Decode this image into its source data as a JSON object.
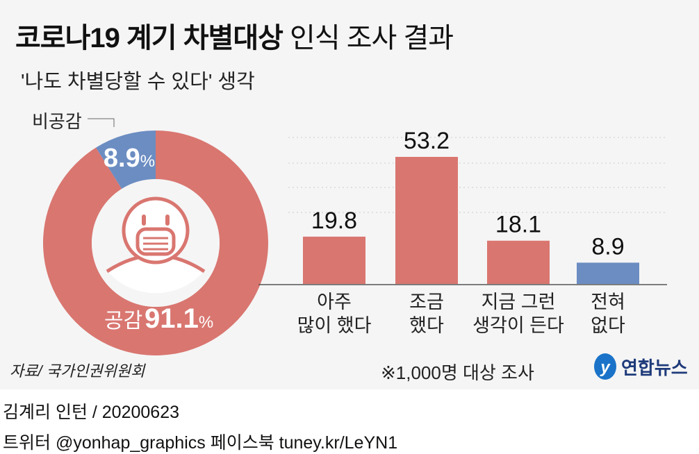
{
  "title_bold": "코로나19 계기 차별대상",
  "title_rest": "인식 조사 결과",
  "subtitle": "'나도 차별당할 수 있다' 생각",
  "source": "자료/ 국가인권위원회",
  "note": "※1,000명 대상 조사",
  "logo": "연합뉴스",
  "credit": "김계리 인턴 / 20200623",
  "social": "트위터 @yonhap_graphics  페이스북 tuney.kr/LeYN1",
  "colors": {
    "red": "#d97670",
    "blue": "#6b8dc2"
  },
  "chart_data": [
    {
      "type": "pie",
      "donut": true,
      "slices": [
        {
          "label": "공감",
          "value": 91.1,
          "value_label": "91.1",
          "color": "#d97670"
        },
        {
          "label": "비공감",
          "value": 8.9,
          "value_label": "8.9",
          "color": "#6b8dc2"
        }
      ],
      "unit": "%",
      "center_icon": "masked-person-icon"
    },
    {
      "type": "bar",
      "categories": [
        "아주\n많이 했다",
        "조금\n했다",
        "지금 그런\n생각이 든다",
        "전혀\n없다"
      ],
      "values": [
        19.8,
        53.2,
        18.1,
        8.9
      ],
      "value_labels": [
        "19.8",
        "53.2",
        "18.1",
        "8.9"
      ],
      "colors": [
        "#d97670",
        "#d97670",
        "#d97670",
        "#6b8dc2"
      ],
      "grid": true
    }
  ]
}
